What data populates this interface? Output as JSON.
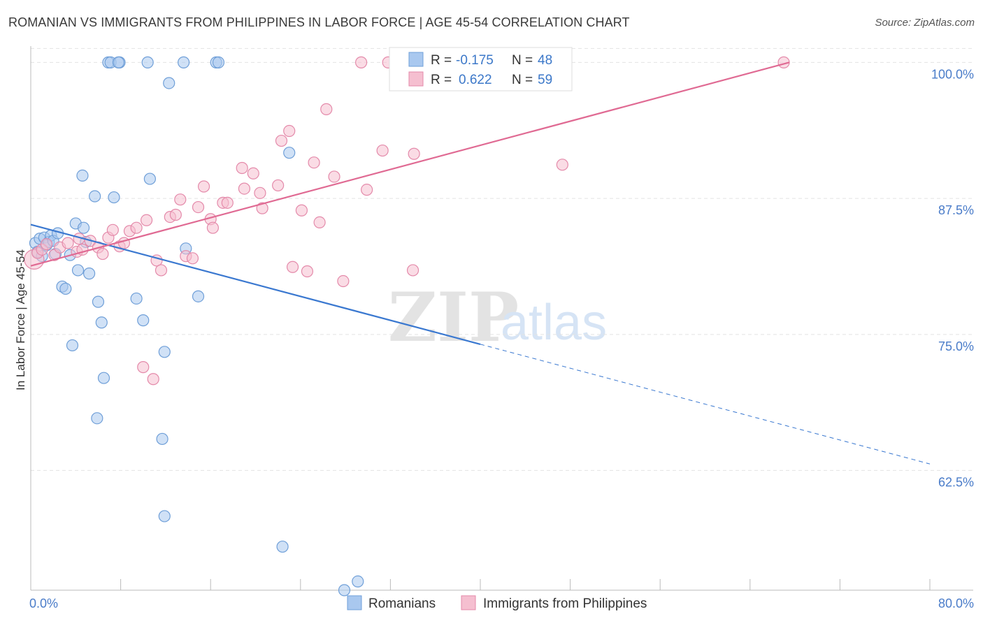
{
  "title": "ROMANIAN VS IMMIGRANTS FROM PHILIPPINES IN LABOR FORCE | AGE 45-54 CORRELATION CHART",
  "source": "Source: ZipAtlas.com",
  "watermark": {
    "part1": "ZIP",
    "part2": "atlas"
  },
  "colors": {
    "blue_fill": "#a9c8ef",
    "blue_stroke": "#6f9fd8",
    "blue_line": "#3a78d0",
    "pink_fill": "#f5bfd0",
    "pink_stroke": "#e48aaa",
    "pink_line": "#e06a93",
    "tick": "#4a7cc9",
    "grid": "#e3e3e3"
  },
  "legend": {
    "blue": {
      "r_label": "R =",
      "r_value": "-0.175",
      "n_label": "N =",
      "n_value": "48"
    },
    "pink": {
      "r_label": "R =",
      "r_value": "0.622",
      "n_label": "N =",
      "n_value": "59"
    }
  },
  "chart_data": {
    "type": "scatter",
    "title": "ROMANIAN VS IMMIGRANTS FROM PHILIPPINES IN LABOR FORCE | AGE 45-54 CORRELATION CHART",
    "ylabel": "In Labor Force | Age 45-54",
    "xlabel": "",
    "xlim": [
      0,
      80
    ],
    "ylim": [
      51.5,
      101.5
    ],
    "x_tick_labels": [
      "0.0%",
      "80.0%"
    ],
    "y_ticks": [
      62.5,
      75.0,
      87.5,
      100.0
    ],
    "y_tick_labels": [
      "62.5%",
      "75.0%",
      "87.5%",
      "100.0%"
    ],
    "series": [
      {
        "name": "Romanians",
        "color": "blue",
        "r": -0.175,
        "n": 48,
        "trend": {
          "x0": 0,
          "y0": 85.1,
          "x1": 40,
          "y1": 74.1,
          "dash_to_x": 80,
          "dash_to_y": 63.1
        },
        "points": [
          [
            0.4,
            83.4
          ],
          [
            0.6,
            82.6
          ],
          [
            0.8,
            83.8
          ],
          [
            1.0,
            82.2
          ],
          [
            1.2,
            83.9
          ],
          [
            1.4,
            83.2
          ],
          [
            1.6,
            83.5
          ],
          [
            1.8,
            84.1
          ],
          [
            2.0,
            83.6
          ],
          [
            2.2,
            82.4
          ],
          [
            2.4,
            84.3
          ],
          [
            2.8,
            79.4
          ],
          [
            3.1,
            79.2
          ],
          [
            3.5,
            82.3
          ],
          [
            4.0,
            85.2
          ],
          [
            4.2,
            80.9
          ],
          [
            4.7,
            84.8
          ],
          [
            4.9,
            83.5
          ],
          [
            5.2,
            80.6
          ],
          [
            4.6,
            89.6
          ],
          [
            5.7,
            87.7
          ],
          [
            6.0,
            78.0
          ],
          [
            6.3,
            76.1
          ],
          [
            6.5,
            71.0
          ],
          [
            5.9,
            67.3
          ],
          [
            3.7,
            74.0
          ],
          [
            7.4,
            87.6
          ],
          [
            6.9,
            100.0
          ],
          [
            7.1,
            100.0
          ],
          [
            7.9,
            100.0
          ],
          [
            7.8,
            100.0
          ],
          [
            10.4,
            100.0
          ],
          [
            13.6,
            100.0
          ],
          [
            16.5,
            100.0
          ],
          [
            16.7,
            100.0
          ],
          [
            12.3,
            98.1
          ],
          [
            10.6,
            89.3
          ],
          [
            9.4,
            78.3
          ],
          [
            10.0,
            76.3
          ],
          [
            11.9,
            73.4
          ],
          [
            11.7,
            65.4
          ],
          [
            11.9,
            58.3
          ],
          [
            13.8,
            82.9
          ],
          [
            14.9,
            78.5
          ],
          [
            23.0,
            91.7
          ],
          [
            22.4,
            55.5
          ],
          [
            29.1,
            52.3
          ],
          [
            27.9,
            51.5
          ]
        ]
      },
      {
        "name": "Immigrants from Philippines",
        "color": "pink",
        "r": 0.622,
        "n": 59,
        "trend": {
          "x0": 0,
          "y0": 81.3,
          "x1": 67.5,
          "y1": 100.0
        },
        "points": [
          [
            0.3,
            81.9
          ],
          [
            0.6,
            82.5
          ],
          [
            1.0,
            82.8
          ],
          [
            1.4,
            83.3
          ],
          [
            2.1,
            82.3
          ],
          [
            2.6,
            83.0
          ],
          [
            3.3,
            83.4
          ],
          [
            4.1,
            82.6
          ],
          [
            4.3,
            83.8
          ],
          [
            4.6,
            82.8
          ],
          [
            5.3,
            83.6
          ],
          [
            6.0,
            83.0
          ],
          [
            6.4,
            82.4
          ],
          [
            6.9,
            83.9
          ],
          [
            7.3,
            84.6
          ],
          [
            7.9,
            83.1
          ],
          [
            8.3,
            83.4
          ],
          [
            8.8,
            84.5
          ],
          [
            9.4,
            84.8
          ],
          [
            10.3,
            85.5
          ],
          [
            11.2,
            81.8
          ],
          [
            11.6,
            80.9
          ],
          [
            12.4,
            85.8
          ],
          [
            12.9,
            86.0
          ],
          [
            13.3,
            87.4
          ],
          [
            13.8,
            82.2
          ],
          [
            14.4,
            82.0
          ],
          [
            14.9,
            86.7
          ],
          [
            15.4,
            88.6
          ],
          [
            16.0,
            85.6
          ],
          [
            16.2,
            84.8
          ],
          [
            17.1,
            87.1
          ],
          [
            17.5,
            87.1
          ],
          [
            18.8,
            90.3
          ],
          [
            19.0,
            88.4
          ],
          [
            19.8,
            89.8
          ],
          [
            20.4,
            88.0
          ],
          [
            20.6,
            86.6
          ],
          [
            22.0,
            88.7
          ],
          [
            22.3,
            92.8
          ],
          [
            23.0,
            93.7
          ],
          [
            23.3,
            81.2
          ],
          [
            24.1,
            86.4
          ],
          [
            24.6,
            80.8
          ],
          [
            25.2,
            90.8
          ],
          [
            25.7,
            85.3
          ],
          [
            26.3,
            95.7
          ],
          [
            27.0,
            89.5
          ],
          [
            27.8,
            79.9
          ],
          [
            29.9,
            88.3
          ],
          [
            31.3,
            91.9
          ],
          [
            34.1,
            91.6
          ],
          [
            34.0,
            80.9
          ],
          [
            29.4,
            100.0
          ],
          [
            31.8,
            100.0
          ],
          [
            47.3,
            90.6
          ],
          [
            67.0,
            100.0
          ],
          [
            10.0,
            72.0
          ],
          [
            10.9,
            70.9
          ]
        ]
      }
    ],
    "legend": [
      "Romanians",
      "Immigrants from Philippines"
    ]
  }
}
